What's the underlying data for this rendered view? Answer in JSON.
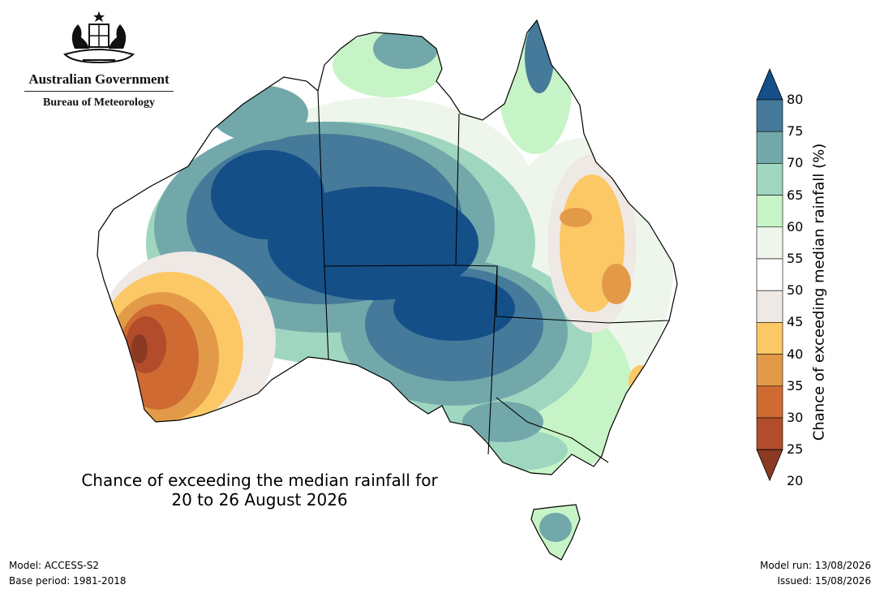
{
  "logo": {
    "agency_line1": "Australian Government",
    "agency_line2": "Bureau of Meteorology"
  },
  "map": {
    "title_line1": "Chance of exceeding the median rainfall for",
    "title_line2": "20 to 26 August 2026",
    "colors": {
      "c20": "#8b3a24",
      "c25": "#b24c2a",
      "c30": "#cf6a33",
      "c35": "#e39a48",
      "c40": "#fcc865",
      "c45": "#efe9e6",
      "c50": "#ffffff",
      "c55": "#eef6ec",
      "c60": "#c7f4c6",
      "c65": "#9fd6c0",
      "c70": "#72a8aa",
      "c75": "#467a9a",
      "c80": "#144f88"
    }
  },
  "colorbar": {
    "label": "Chance of exceeding median rainfall (%)",
    "ticks": [
      "80",
      "75",
      "70",
      "65",
      "60",
      "55",
      "50",
      "45",
      "40",
      "35",
      "30",
      "25",
      "20"
    ],
    "bands": [
      "#144f88",
      "#467a9a",
      "#72a8aa",
      "#9fd6c0",
      "#c7f4c6",
      "#eef6ec",
      "#ffffff",
      "#efe9e6",
      "#fcc865",
      "#e39a48",
      "#cf6a33",
      "#b24c2a",
      "#8b3a24"
    ]
  },
  "footer": {
    "model": "Model: ACCESS-S2",
    "base_period": "Base period: 1981-2018",
    "model_run": "Model run: 13/08/2026",
    "issued": "Issued: 15/08/2026"
  }
}
